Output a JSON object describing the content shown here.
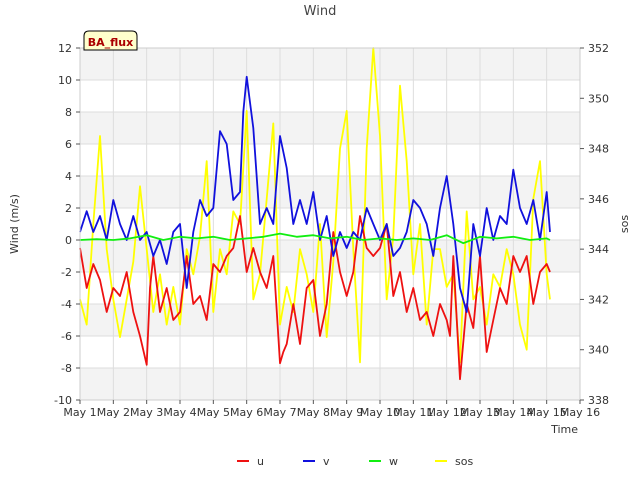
{
  "chart_data": {
    "type": "line",
    "title": "Wind",
    "xlabel": "Time",
    "ylabel": "Wind (m/s)",
    "y2label": "sos",
    "badge": "BA_flux",
    "xlim": [
      1,
      16
    ],
    "ylim": [
      -10,
      12
    ],
    "y2lim": [
      338,
      352
    ],
    "x_ticks": [
      {
        "x": 1,
        "label": "May 1"
      },
      {
        "x": 2,
        "label": "May 2"
      },
      {
        "x": 3,
        "label": "May 3"
      },
      {
        "x": 4,
        "label": "May 4"
      },
      {
        "x": 5,
        "label": "May 5"
      },
      {
        "x": 6,
        "label": "May 6"
      },
      {
        "x": 7,
        "label": "May 7"
      },
      {
        "x": 8,
        "label": "May 8"
      },
      {
        "x": 9,
        "label": "May 9"
      },
      {
        "x": 10,
        "label": "May 10"
      },
      {
        "x": 11,
        "label": "May 11"
      },
      {
        "x": 12,
        "label": "May 12"
      },
      {
        "x": 13,
        "label": "May 13"
      },
      {
        "x": 14,
        "label": "May 14"
      },
      {
        "x": 15,
        "label": "May 15"
      },
      {
        "x": 16,
        "label": "May 16"
      }
    ],
    "y_ticks": [
      {
        "v": -10,
        "label": "-10"
      },
      {
        "v": -8,
        "label": "-8"
      },
      {
        "v": -6,
        "label": "-6"
      },
      {
        "v": -4,
        "label": "-4"
      },
      {
        "v": -2,
        "label": "-2"
      },
      {
        "v": 0,
        "label": "0"
      },
      {
        "v": 2,
        "label": "2"
      },
      {
        "v": 4,
        "label": "4"
      },
      {
        "v": 6,
        "label": "6"
      },
      {
        "v": 8,
        "label": "8"
      },
      {
        "v": 10,
        "label": "10"
      },
      {
        "v": 12,
        "label": "12"
      }
    ],
    "y2_ticks": [
      {
        "v": 338,
        "label": "338"
      },
      {
        "v": 340,
        "label": "340"
      },
      {
        "v": 342,
        "label": "342"
      },
      {
        "v": 344,
        "label": "344"
      },
      {
        "v": 346,
        "label": "346"
      },
      {
        "v": 348,
        "label": "348"
      },
      {
        "v": 350,
        "label": "350"
      },
      {
        "v": 352,
        "label": "352"
      }
    ],
    "series": [
      {
        "name": "u",
        "color": "#ee1111",
        "axis": "left",
        "x": [
          1.0,
          1.2,
          1.4,
          1.6,
          1.8,
          2.0,
          2.2,
          2.4,
          2.6,
          2.8,
          3.0,
          3.1,
          3.2,
          3.4,
          3.6,
          3.8,
          4.0,
          4.2,
          4.4,
          4.6,
          4.8,
          5.0,
          5.2,
          5.4,
          5.6,
          5.8,
          6.0,
          6.2,
          6.4,
          6.6,
          6.8,
          7.0,
          7.1,
          7.2,
          7.4,
          7.6,
          7.8,
          8.0,
          8.2,
          8.4,
          8.6,
          8.8,
          9.0,
          9.2,
          9.4,
          9.6,
          9.8,
          10.0,
          10.2,
          10.4,
          10.6,
          10.8,
          11.0,
          11.2,
          11.4,
          11.6,
          11.8,
          12.0,
          12.1,
          12.2,
          12.4,
          12.6,
          12.8,
          13.0,
          13.2,
          13.4,
          13.6,
          13.8,
          14.0,
          14.2,
          14.4,
          14.6,
          14.8,
          15.0,
          15.1
        ],
        "y": [
          -0.5,
          -3.0,
          -1.5,
          -2.5,
          -4.5,
          -3.0,
          -3.5,
          -2.0,
          -4.5,
          -6.0,
          -7.8,
          -3.0,
          -1.0,
          -4.5,
          -3.0,
          -5.0,
          -4.5,
          -1.0,
          -4.0,
          -3.5,
          -5.0,
          -1.5,
          -2.0,
          -1.0,
          -0.5,
          1.5,
          -2.0,
          -0.5,
          -2.0,
          -3.0,
          -1.0,
          -7.7,
          -7.0,
          -6.5,
          -4.0,
          -6.5,
          -3.0,
          -2.5,
          -6.0,
          -4.0,
          0.5,
          -2.0,
          -3.5,
          -2.0,
          1.5,
          -0.5,
          -1.0,
          -0.5,
          1.0,
          -3.5,
          -2.0,
          -4.5,
          -3.0,
          -5.0,
          -4.5,
          -6.0,
          -4.0,
          -5.0,
          -6.0,
          -1.0,
          -8.7,
          -4.0,
          -5.5,
          -1.0,
          -7.0,
          -5.0,
          -3.0,
          -4.0,
          -1.0,
          -2.0,
          -1.0,
          -4.0,
          -2.0,
          -1.5,
          -2.0
        ]
      },
      {
        "name": "v",
        "color": "#1111dd",
        "axis": "left",
        "x": [
          1.0,
          1.2,
          1.4,
          1.6,
          1.8,
          2.0,
          2.2,
          2.4,
          2.6,
          2.8,
          3.0,
          3.2,
          3.4,
          3.6,
          3.8,
          4.0,
          4.2,
          4.4,
          4.6,
          4.8,
          5.0,
          5.2,
          5.4,
          5.6,
          5.8,
          5.9,
          6.0,
          6.2,
          6.4,
          6.6,
          6.8,
          7.0,
          7.2,
          7.4,
          7.6,
          7.8,
          8.0,
          8.2,
          8.4,
          8.6,
          8.8,
          9.0,
          9.2,
          9.4,
          9.6,
          9.8,
          10.0,
          10.2,
          10.4,
          10.6,
          10.8,
          11.0,
          11.2,
          11.4,
          11.6,
          11.8,
          12.0,
          12.2,
          12.4,
          12.6,
          12.8,
          13.0,
          13.2,
          13.4,
          13.6,
          13.8,
          14.0,
          14.2,
          14.4,
          14.6,
          14.8,
          15.0,
          15.1
        ],
        "y": [
          0.5,
          1.8,
          0.5,
          1.5,
          0.0,
          2.5,
          1.0,
          0.0,
          1.5,
          0.0,
          0.5,
          -1.0,
          0.0,
          -1.5,
          0.5,
          1.0,
          -3.0,
          0.5,
          2.5,
          1.5,
          2.0,
          6.8,
          6.0,
          2.5,
          3.0,
          8.0,
          10.2,
          7.0,
          1.0,
          2.0,
          1.0,
          6.5,
          4.5,
          1.0,
          2.5,
          1.0,
          3.0,
          0.0,
          1.5,
          -1.0,
          0.5,
          -0.5,
          0.5,
          0.0,
          2.0,
          1.0,
          0.0,
          1.0,
          -1.0,
          -0.5,
          0.5,
          2.5,
          2.0,
          1.0,
          -1.0,
          2.0,
          4.0,
          1.0,
          -3.0,
          -4.5,
          1.0,
          -1.0,
          2.0,
          0.0,
          1.5,
          1.0,
          4.4,
          2.0,
          1.0,
          2.5,
          0.0,
          3.0,
          0.5
        ]
      },
      {
        "name": "w",
        "color": "#11ee11",
        "axis": "left",
        "x": [
          1.0,
          1.5,
          2.0,
          2.5,
          3.0,
          3.5,
          4.0,
          4.5,
          5.0,
          5.5,
          6.0,
          6.5,
          7.0,
          7.5,
          8.0,
          8.5,
          9.0,
          9.5,
          10.0,
          10.5,
          11.0,
          11.5,
          12.0,
          12.5,
          13.0,
          13.5,
          14.0,
          14.5,
          15.0,
          15.1
        ],
        "y": [
          0.0,
          0.05,
          0.0,
          0.1,
          0.3,
          0.0,
          0.2,
          0.1,
          0.2,
          0.0,
          0.1,
          0.2,
          0.4,
          0.2,
          0.3,
          0.1,
          0.2,
          0.0,
          0.1,
          0.0,
          0.1,
          0.0,
          0.3,
          -0.2,
          0.2,
          0.1,
          0.2,
          0.0,
          0.1,
          0.0
        ]
      },
      {
        "name": "sos",
        "color": "#ffff00",
        "axis": "right",
        "x": [
          1.0,
          1.2,
          1.4,
          1.6,
          1.8,
          2.0,
          2.2,
          2.4,
          2.6,
          2.8,
          3.0,
          3.2,
          3.4,
          3.6,
          3.8,
          4.0,
          4.2,
          4.4,
          4.6,
          4.8,
          5.0,
          5.2,
          5.4,
          5.6,
          5.8,
          6.0,
          6.2,
          6.4,
          6.6,
          6.8,
          7.0,
          7.2,
          7.4,
          7.6,
          7.8,
          8.0,
          8.2,
          8.4,
          8.6,
          8.8,
          9.0,
          9.2,
          9.4,
          9.6,
          9.8,
          10.0,
          10.2,
          10.4,
          10.6,
          10.8,
          11.0,
          11.2,
          11.4,
          11.6,
          11.8,
          12.0,
          12.2,
          12.4,
          12.6,
          12.8,
          13.0,
          13.2,
          13.4,
          13.6,
          13.8,
          14.0,
          14.2,
          14.4,
          14.6,
          14.8,
          15.0,
          15.1
        ],
        "y": [
          342.0,
          341.0,
          345.0,
          348.5,
          344.0,
          342.0,
          340.5,
          342.0,
          343.5,
          346.5,
          344.0,
          341.5,
          343.0,
          341.0,
          342.5,
          341.0,
          344.0,
          343.0,
          344.5,
          347.5,
          341.5,
          344.0,
          343.0,
          345.5,
          345.0,
          349.5,
          342.0,
          343.0,
          346.0,
          349.0,
          341.0,
          342.5,
          341.5,
          344.0,
          343.0,
          341.5,
          345.0,
          340.5,
          343.5,
          348.0,
          349.5,
          344.0,
          339.5,
          348.0,
          352.0,
          348.5,
          342.0,
          344.5,
          350.5,
          347.5,
          343.0,
          345.0,
          341.0,
          344.0,
          344.0,
          342.5,
          343.0,
          339.5,
          345.5,
          342.0,
          342.5,
          341.0,
          343.0,
          342.5,
          344.0,
          343.0,
          341.0,
          340.0,
          346.0,
          347.5,
          343.0,
          342.0
        ]
      }
    ]
  }
}
